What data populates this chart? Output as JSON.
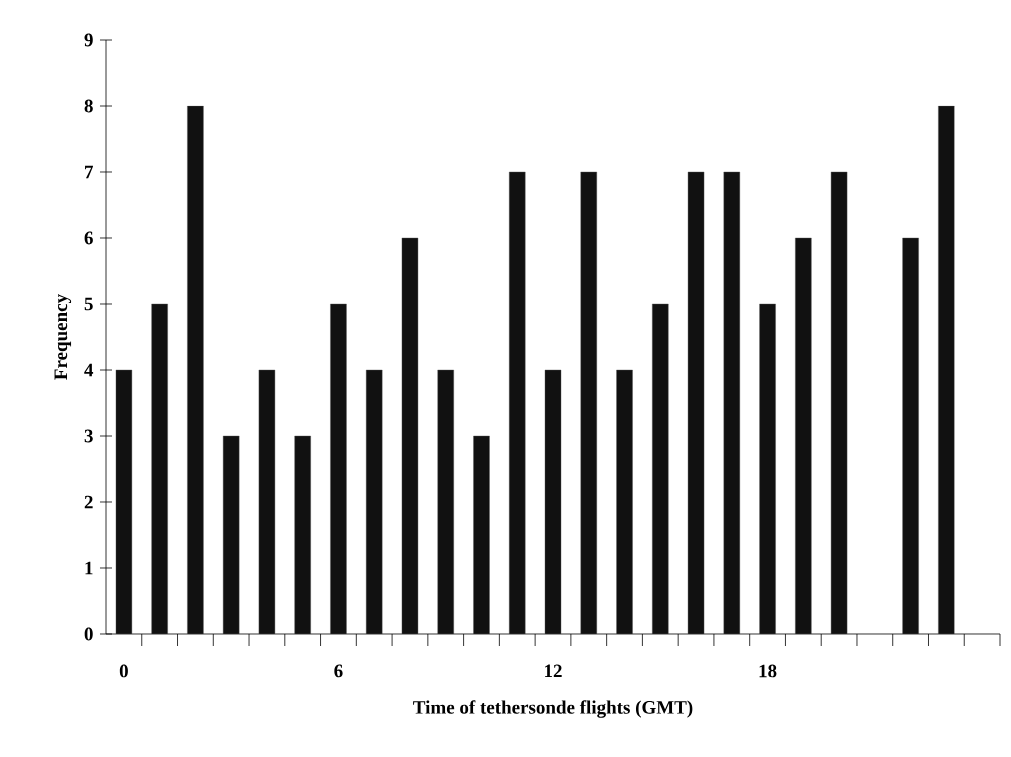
{
  "chart_data": {
    "type": "bar",
    "xlabel": "Time of tethersonde flights (GMT)",
    "ylabel": "Frequency",
    "categories": [
      "0",
      null,
      null,
      null,
      null,
      null,
      "6",
      null,
      null,
      null,
      null,
      null,
      "12",
      null,
      null,
      null,
      null,
      null,
      "18",
      null,
      null,
      null,
      null,
      null,
      null
    ],
    "values": [
      4,
      5,
      8,
      3,
      4,
      3,
      5,
      4,
      6,
      4,
      3,
      7,
      4,
      7,
      4,
      5,
      7,
      7,
      5,
      6,
      7,
      null,
      6,
      8,
      null
    ],
    "color": "#111111",
    "ylim": [
      0,
      9
    ],
    "yticks": [
      0,
      1,
      2,
      3,
      4,
      5,
      6,
      7,
      8,
      9
    ],
    "grid": false
  }
}
